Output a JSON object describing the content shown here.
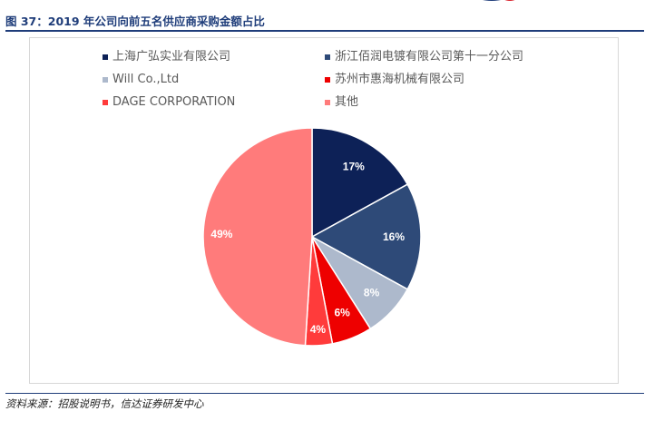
{
  "figure": {
    "title": "图 37：2019 年公司向前五名供应商采购金额占比",
    "source": "资料来源：招股说明书，信达证券研发中心"
  },
  "colors": {
    "title": "#1f3d7a",
    "rule": "#1f3d7a",
    "logo_red": "#d9232d",
    "logo_blue": "#1f3d7a"
  },
  "chart_data": {
    "type": "pie",
    "title": "",
    "legend_position": "top",
    "start_angle_deg": 0,
    "direction": "clockwise",
    "slices": [
      {
        "label": "上海广弘实业有限公司",
        "value": 17,
        "value_label": "17%",
        "color": "#0d2157"
      },
      {
        "label": "浙江佰润电镀有限公司第十一分公司",
        "value": 16,
        "value_label": "16%",
        "color": "#2e4a78"
      },
      {
        "label": "Will Co.,Ltd",
        "value": 8,
        "value_label": "8%",
        "color": "#adb9cc"
      },
      {
        "label": "苏州市惠海机械有限公司",
        "value": 6,
        "value_label": "6%",
        "color": "#ee0000"
      },
      {
        "label": "DAGE CORPORATION",
        "value": 4,
        "value_label": "4%",
        "color": "#ff3b3b"
      },
      {
        "label": "其他",
        "value": 49,
        "value_label": "49%",
        "color": "#ff7b7b"
      }
    ]
  }
}
